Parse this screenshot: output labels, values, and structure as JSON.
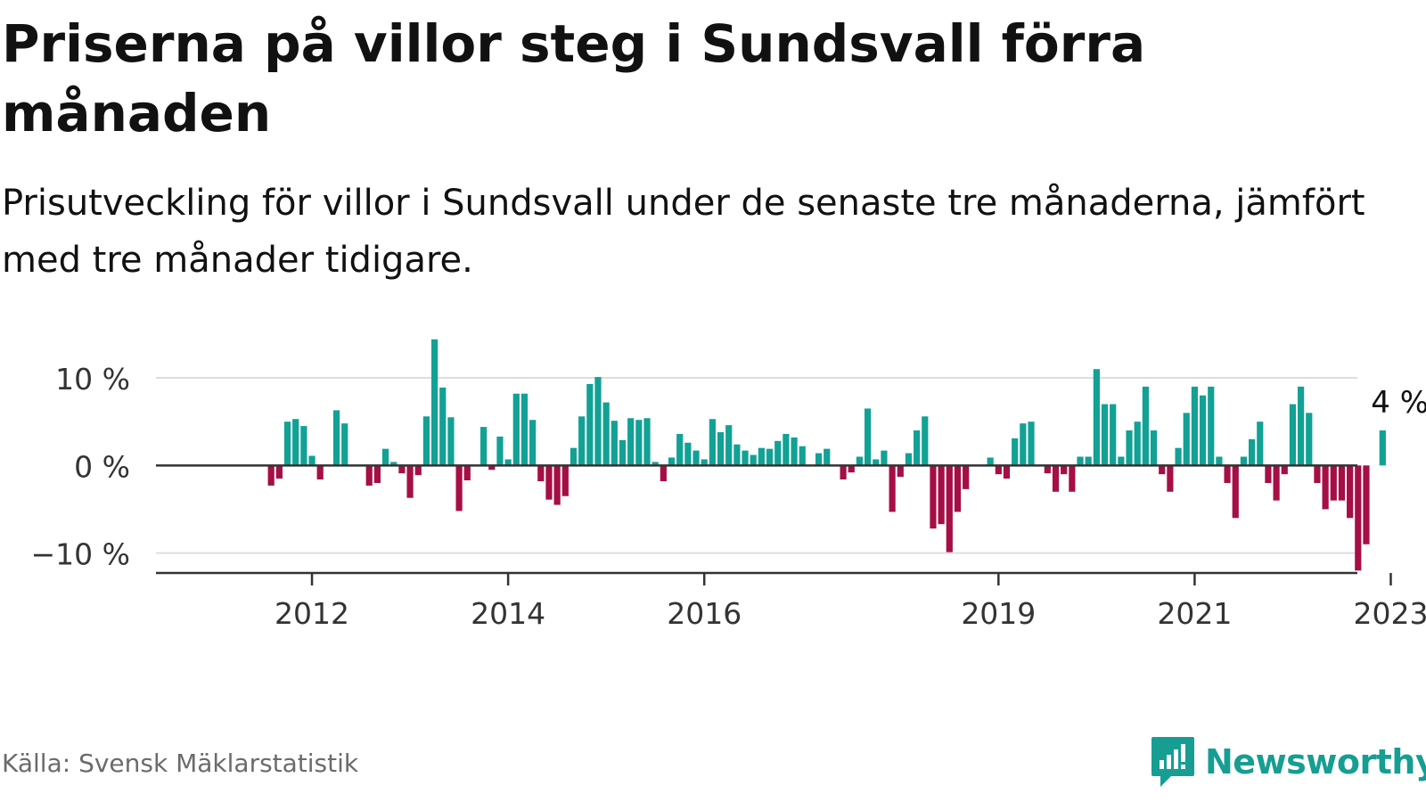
{
  "header": {
    "title": "Priserna på villor steg i Sundsvall förra månaden",
    "subtitle": "Prisutveckling för villor i Sundsvall under de senaste tre månaderna, jämfört med tre månader tidigare."
  },
  "footer": {
    "source": "Källa: Svensk Mäklarstatistik",
    "brand": "Newsworthy"
  },
  "colors": {
    "positive": "#12a195",
    "negative": "#a50f45",
    "brand": "#179e92",
    "grid": "#dddddd",
    "axis": "#333333"
  },
  "chart_data": {
    "type": "bar",
    "x_start": "2011-01",
    "ylim": [
      -13.5,
      15.5
    ],
    "y_ticks": [
      {
        "value": 10,
        "label": "10 %"
      },
      {
        "value": 0,
        "label": "0 %"
      },
      {
        "value": -10,
        "label": "−10 %"
      }
    ],
    "x_ticks": [
      {
        "month_index": 12,
        "label": "2012"
      },
      {
        "month_index": 36,
        "label": "2014"
      },
      {
        "month_index": 60,
        "label": "2016"
      },
      {
        "month_index": 96,
        "label": "2019"
      },
      {
        "month_index": 120,
        "label": "2021"
      },
      {
        "month_index": 144,
        "label": "2023"
      }
    ],
    "annotation": {
      "month_index": 145,
      "value": 4,
      "label": "4 %"
    },
    "values": [
      null,
      null,
      null,
      null,
      null,
      null,
      null,
      -2.3,
      -1.5,
      5.0,
      5.3,
      4.5,
      1.1,
      -1.6,
      null,
      6.3,
      4.8,
      null,
      null,
      -2.3,
      -2.0,
      1.9,
      0.4,
      -0.9,
      -3.7,
      -1.1,
      5.6,
      14.4,
      8.9,
      5.5,
      -5.2,
      -1.7,
      null,
      4.4,
      -0.5,
      3.3,
      0.7,
      8.2,
      8.2,
      5.2,
      -1.8,
      -3.9,
      -4.5,
      -3.5,
      2.0,
      5.6,
      9.3,
      10.1,
      7.2,
      5.1,
      2.9,
      5.4,
      5.2,
      5.4,
      0.4,
      -1.8,
      0.9,
      3.6,
      2.6,
      1.7,
      0.7,
      5.3,
      3.8,
      4.6,
      2.4,
      1.7,
      1.2,
      2.0,
      1.9,
      2.8,
      3.6,
      3.2,
      2.2,
      null,
      1.4,
      1.9,
      null,
      -1.6,
      -0.8,
      1.0,
      6.5,
      0.7,
      1.7,
      -5.3,
      -1.3,
      1.4,
      4.0,
      5.6,
      -7.2,
      -6.7,
      -9.9,
      -5.3,
      -2.7,
      null,
      null,
      0.9,
      -1.0,
      -1.5,
      3.1,
      4.8,
      5.0,
      null,
      -0.9,
      -3.0,
      -1.0,
      -3.0,
      1.0,
      1.0,
      11.0,
      7.0,
      7.0,
      1.0,
      4.0,
      5.0,
      9.0,
      4.0,
      -1.0,
      -3.0,
      2.0,
      6.0,
      9.0,
      8.0,
      9.0,
      1.0,
      -2.0,
      -6.0,
      1.0,
      3.0,
      5.0,
      -2.0,
      -4.0,
      -1.0,
      7.0,
      9.0,
      6.0,
      -2.0,
      -5.0,
      -4.0,
      -4.0,
      -6.0,
      -12.0,
      -9.0,
      null,
      4.0
    ]
  }
}
